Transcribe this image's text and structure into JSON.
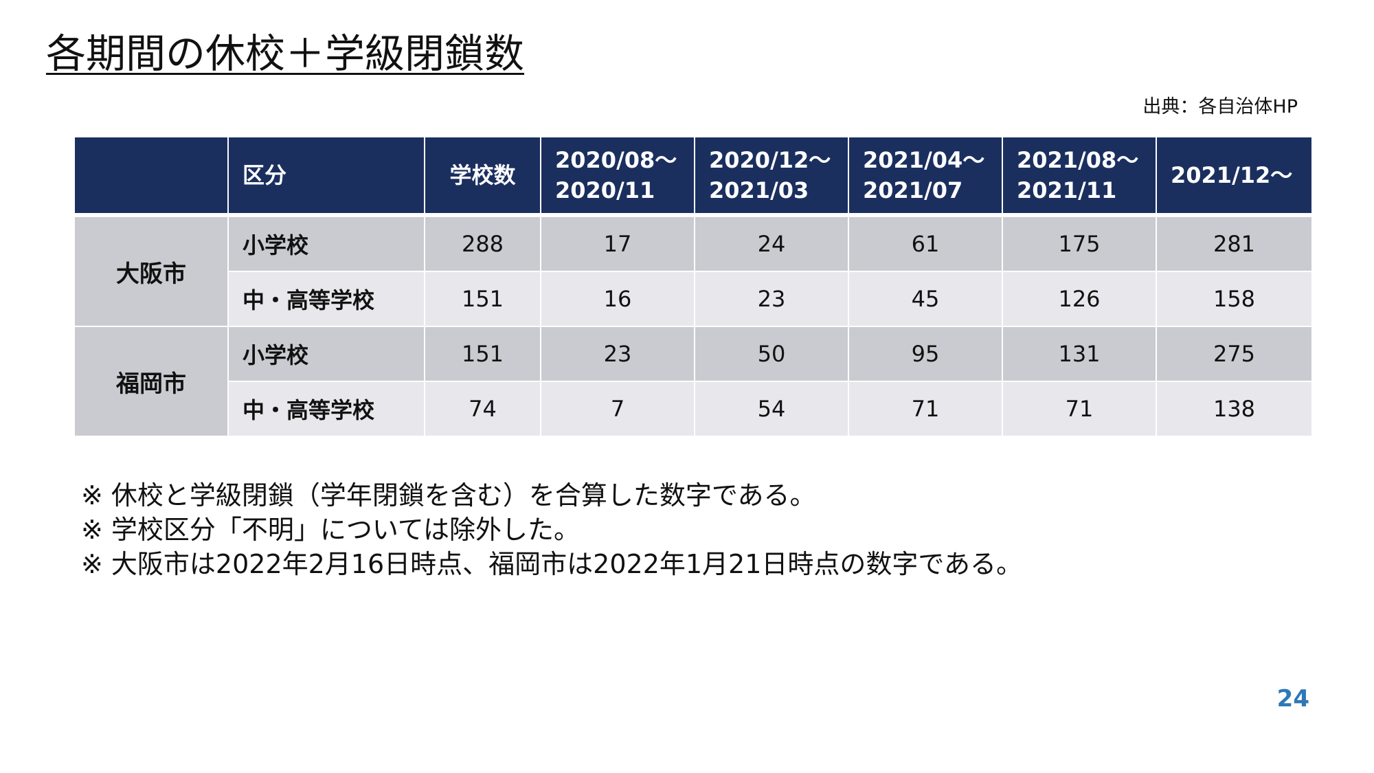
{
  "title": "各期間の休校＋学級閉鎖数",
  "source": "出典：各自治体HP",
  "table": {
    "headers": {
      "blank": "",
      "category": "区分",
      "school_count": "学校数",
      "periods": [
        {
          "line1": "2020/08～",
          "line2": "2020/11"
        },
        {
          "line1": "2020/12～",
          "line2": "2021/03"
        },
        {
          "line1": "2021/04～",
          "line2": "2021/07"
        },
        {
          "line1": "2021/08～",
          "line2": "2021/11"
        },
        {
          "line1": "2021/12～",
          "line2": ""
        }
      ]
    },
    "groups": [
      {
        "city": "大阪市",
        "rows": [
          {
            "category": "小学校",
            "school_count": "288",
            "values": [
              "17",
              "24",
              "61",
              "175",
              "281"
            ]
          },
          {
            "category": "中・高等学校",
            "school_count": "151",
            "values": [
              "16",
              "23",
              "45",
              "126",
              "158"
            ]
          }
        ]
      },
      {
        "city": "福岡市",
        "rows": [
          {
            "category": "小学校",
            "school_count": "151",
            "values": [
              "23",
              "50",
              "95",
              "131",
              "275"
            ]
          },
          {
            "category": "中・高等学校",
            "school_count": "74",
            "values": [
              "7",
              "54",
              "71",
              "71",
              "138"
            ]
          }
        ]
      }
    ]
  },
  "notes": [
    "※ 休校と学級閉鎖（学年閉鎖を含む）を合算した数字である。",
    "※ 学校区分「不明」については除外した。",
    "※ 大阪市は2022年2月16日時点、福岡市は2022年1月21日時点の数字である。"
  ],
  "page_number": "24",
  "colors": {
    "header_bg": "#1b2f5f",
    "row_dark": "#cacbd1",
    "row_light": "#e8e8ec",
    "page_number": "#2d78b6"
  }
}
